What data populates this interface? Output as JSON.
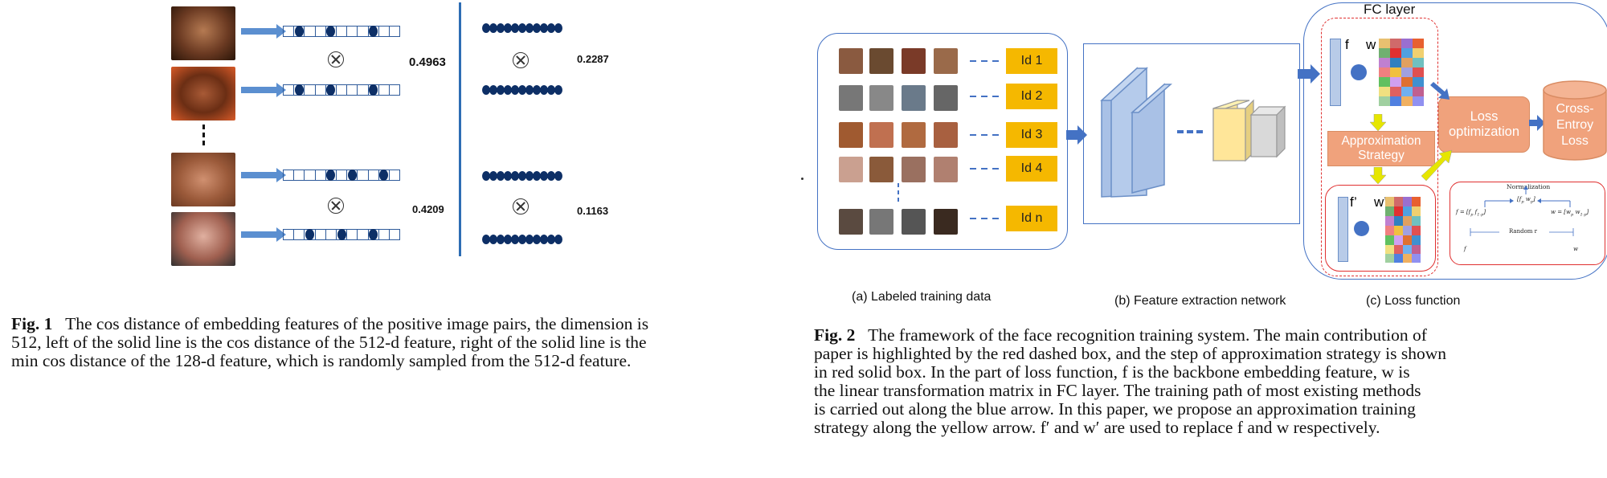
{
  "fig1": {
    "values": {
      "v512_top": "0.4963",
      "v128_top": "0.2287",
      "v512_bottom": "0.4209",
      "v128_bottom": "0.1163"
    },
    "caption_label": "Fig. 1",
    "caption_lines": [
      "The cos distance of embedding features of the positive image pairs, the dimension is",
      "512, left of the solid line is the cos distance of the 512-d feature, right of the solid line is the",
      "min cos distance of the 128-d feature, which is randomly sampled from the 512-d feature."
    ],
    "colors": {
      "line": "#2e6db4",
      "dot": "#0d2f66",
      "arrow": "#5b8fd0"
    }
  },
  "fig2": {
    "fc_layer": "FC layer",
    "ids": [
      "Id 1",
      "Id 2",
      "Id 3",
      "Id 4",
      "Id n"
    ],
    "f_label": "f",
    "w_label": "w",
    "f_prime": "f’",
    "w_prime": "w’",
    "approx": "Approximation Strategy",
    "loss_opt": "Loss optimization",
    "cross": "Cross-Entroy Loss",
    "sublabels": [
      "(a) Labeled training data",
      "(b) Feature extraction network",
      "(c) Loss function"
    ],
    "mini": {
      "normalization": "Normalization",
      "f_eq": "f = [f",
      "w_eq": "w = [w",
      "random": "Random r",
      "f_var": "f",
      "w_var": "w",
      "fw": "[f",
      "fw2": " w",
      "p_sub": "p",
      "r_sub": "r"
    },
    "caption_label": "Fig. 2",
    "caption_lines": [
      "The framework of the face recognition training system. The main contribution of",
      "paper is highlighted by the red dashed box, and the step of approximation strategy is shown",
      "in red solid box. In the part of loss function, f is the backbone embedding feature, w is",
      "the linear transformation matrix in FC layer. The training path of most existing methods",
      "is carried out along the blue arrow. In this paper, we propose an approximation training",
      "strategy along the yellow arrow. f′ and w′ are used to replace f and w respectively."
    ],
    "colors": {
      "blue": "#4472c4",
      "orange": "#f0a27c",
      "yellow": "#f5e600",
      "red": "#e03030",
      "id": "#f5b800"
    }
  }
}
